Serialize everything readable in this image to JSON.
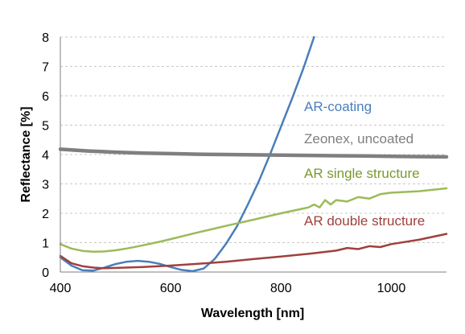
{
  "chart_data": {
    "type": "line",
    "xlabel": "Wavelength [nm]",
    "ylabel": "Reflectance [%]",
    "xlim": [
      400,
      1100
    ],
    "ylim": [
      0,
      8
    ],
    "xticks": [
      400,
      600,
      800,
      1000
    ],
    "yticks": [
      0,
      1,
      2,
      3,
      4,
      5,
      6,
      7,
      8
    ],
    "grid": "horizontal dashed",
    "legend": "inline labels, right side",
    "series": [
      {
        "name": "AR-coating",
        "color": "#4a7ebb",
        "x": [
          400,
          420,
          440,
          460,
          480,
          500,
          520,
          540,
          560,
          580,
          600,
          620,
          640,
          660,
          680,
          700,
          720,
          740,
          760,
          780,
          800,
          820,
          840,
          860
        ],
        "y": [
          0.5,
          0.22,
          0.06,
          0.05,
          0.15,
          0.27,
          0.35,
          0.38,
          0.35,
          0.28,
          0.17,
          0.07,
          0.03,
          0.12,
          0.45,
          0.95,
          1.55,
          2.3,
          3.1,
          4.0,
          4.95,
          5.9,
          6.9,
          8.0
        ]
      },
      {
        "name": "Zeonex, uncoated",
        "color": "#7f7f7f",
        "x": [
          400,
          450,
          500,
          550,
          600,
          650,
          700,
          750,
          800,
          850,
          900,
          950,
          1000,
          1050,
          1100
        ],
        "y": [
          4.18,
          4.12,
          4.08,
          4.05,
          4.03,
          4.01,
          4.0,
          3.99,
          3.98,
          3.97,
          3.96,
          3.95,
          3.94,
          3.93,
          3.92
        ]
      },
      {
        "name": "AR single structure",
        "color": "#9bbb59",
        "x": [
          400,
          420,
          440,
          460,
          480,
          500,
          520,
          540,
          560,
          580,
          600,
          650,
          700,
          750,
          800,
          850,
          860,
          870,
          880,
          890,
          900,
          920,
          940,
          960,
          980,
          1000,
          1050,
          1100
        ],
        "y": [
          0.95,
          0.8,
          0.72,
          0.69,
          0.7,
          0.74,
          0.8,
          0.87,
          0.95,
          1.03,
          1.12,
          1.35,
          1.57,
          1.78,
          2.0,
          2.2,
          2.3,
          2.2,
          2.45,
          2.3,
          2.45,
          2.4,
          2.55,
          2.5,
          2.65,
          2.7,
          2.75,
          2.85
        ]
      },
      {
        "name": "AR double structure",
        "color": "#a0403e",
        "x": [
          400,
          420,
          440,
          460,
          480,
          500,
          550,
          600,
          650,
          700,
          750,
          800,
          850,
          900,
          920,
          940,
          960,
          980,
          1000,
          1050,
          1100
        ],
        "y": [
          0.55,
          0.3,
          0.2,
          0.15,
          0.13,
          0.14,
          0.17,
          0.22,
          0.28,
          0.35,
          0.44,
          0.53,
          0.62,
          0.73,
          0.82,
          0.78,
          0.88,
          0.85,
          0.95,
          1.1,
          1.3
        ]
      }
    ]
  }
}
